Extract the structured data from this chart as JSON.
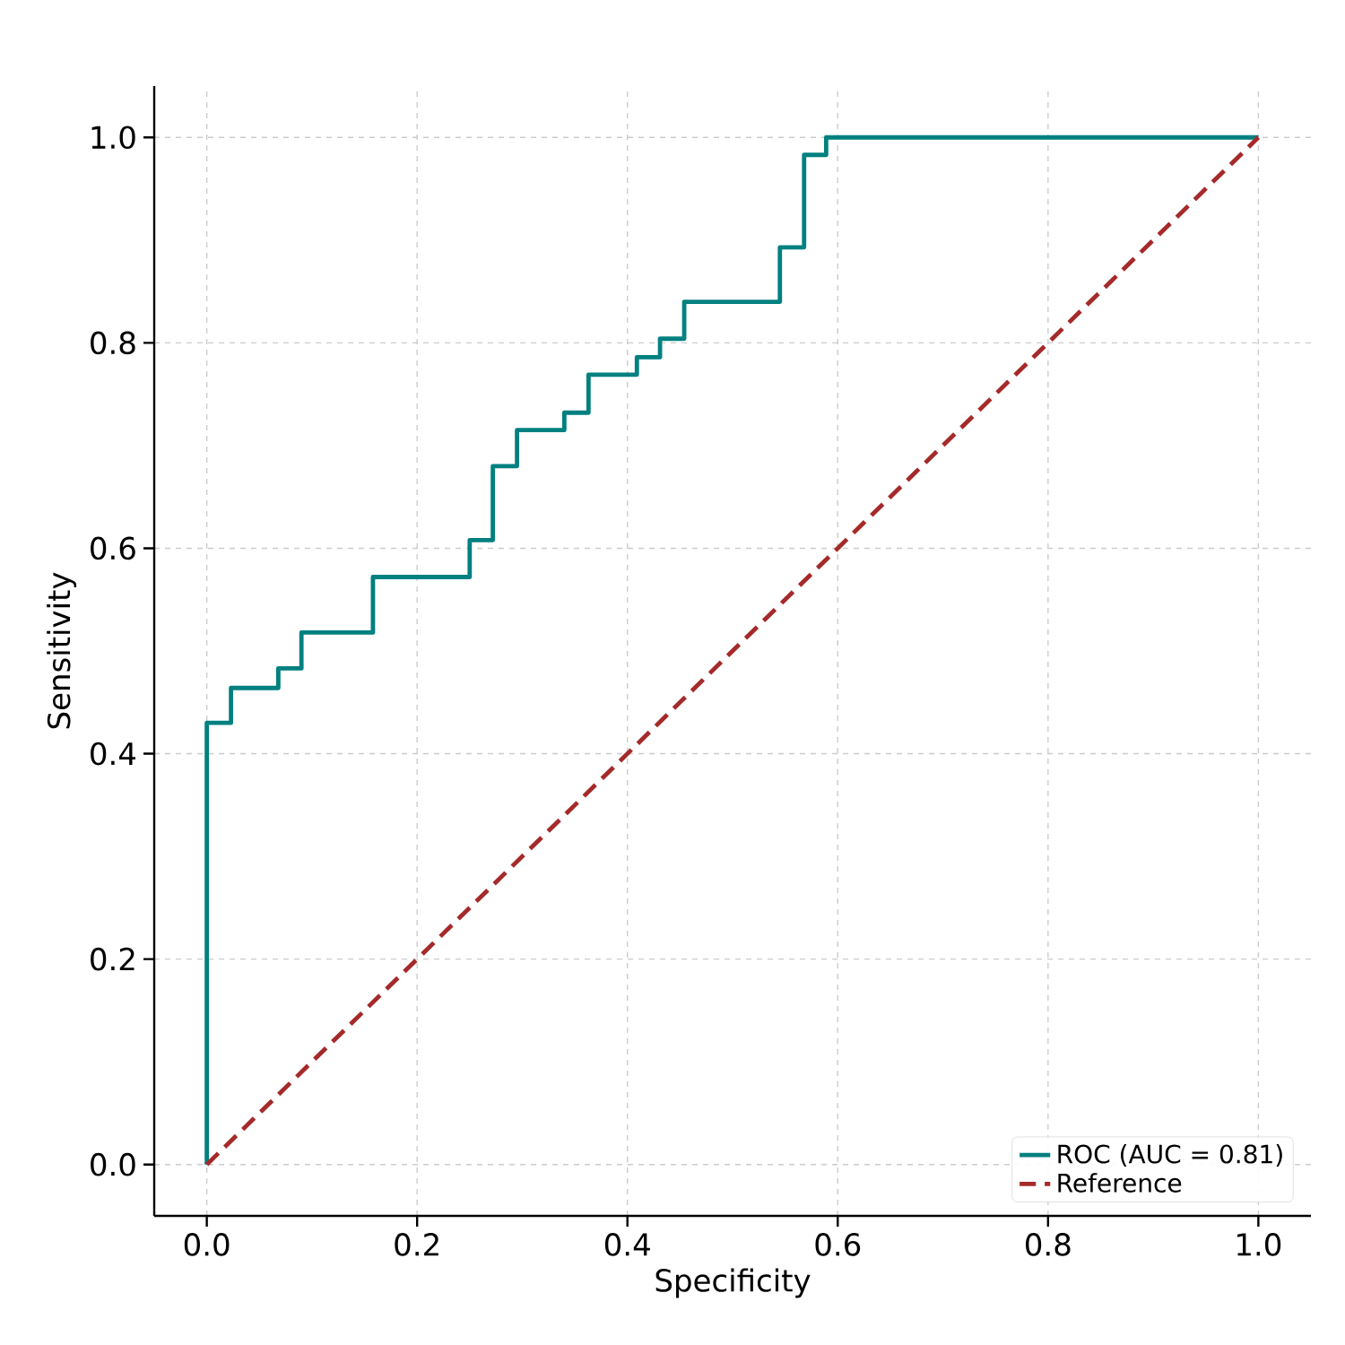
{
  "chart_data": {
    "type": "line",
    "xlabel": "Specificity",
    "ylabel": "Sensitivity",
    "xlim": [
      -0.05,
      1.05
    ],
    "ylim": [
      -0.05,
      1.05
    ],
    "xticks": [
      {
        "value": 0,
        "label": "0.0"
      },
      0.2,
      0.4,
      0.6,
      0.8,
      {
        "value": 1,
        "label": "1.0"
      }
    ],
    "yticks": [
      {
        "value": 0,
        "label": "0.0"
      },
      0.2,
      0.4,
      0.6,
      0.8,
      {
        "value": 1,
        "label": "1.0"
      }
    ],
    "grid": true,
    "legend": "bottom right",
    "series": [
      {
        "name": "ROC (AUC = 0.81)",
        "color": "#008080",
        "line_style": "solid",
        "x": [
          0,
          0,
          0.023,
          0.023,
          0.068,
          0.068,
          0.09,
          0.09,
          0.158,
          0.158,
          0.25,
          0.25,
          0.272,
          0.272,
          0.295,
          0.295,
          0.34,
          0.34,
          0.363,
          0.363,
          0.409,
          0.409,
          0.431,
          0.431,
          0.454,
          0.454,
          0.545,
          0.545,
          0.568,
          0.568,
          0.589,
          0.589,
          1
        ],
        "values": [
          0,
          0.43,
          0.43,
          0.464,
          0.464,
          0.483,
          0.483,
          0.518,
          0.518,
          0.572,
          0.572,
          0.608,
          0.608,
          0.68,
          0.68,
          0.715,
          0.715,
          0.732,
          0.732,
          0.769,
          0.769,
          0.786,
          0.786,
          0.804,
          0.804,
          0.84,
          0.84,
          0.893,
          0.893,
          0.983,
          0.983,
          1,
          1
        ]
      },
      {
        "name": "Reference",
        "color": "#a52a2a",
        "line_style": "dashed",
        "x": [
          0,
          1
        ],
        "values": [
          0,
          1
        ]
      }
    ]
  }
}
